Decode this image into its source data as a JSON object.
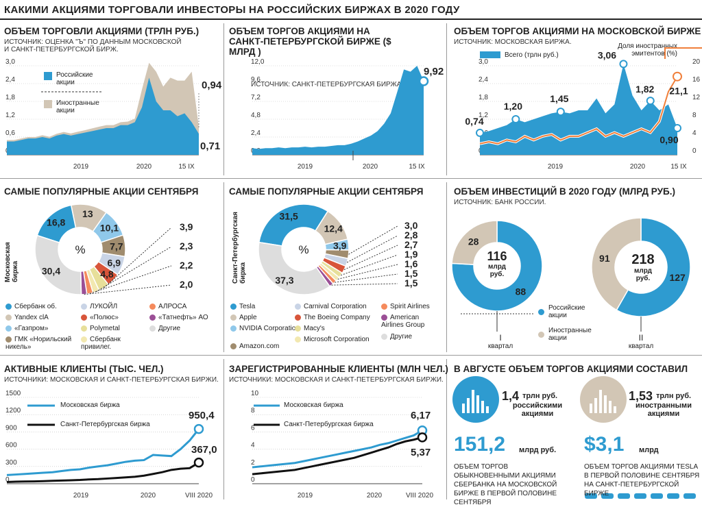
{
  "title": "КАКИМИ АКЦИЯМИ ТОРГОВАЛИ ИНВЕСТОРЫ НА РОССИЙСКИХ БИРЖАХ В 2020 ГОДУ",
  "colors": {
    "blue": "#2e9bd0",
    "beige": "#d2c6b5",
    "orange": "#f07f3a",
    "black": "#111111"
  },
  "p1": {
    "title": "ОБЪЕМ ТОРГОВЛИ АКЦИЯМИ (ТРЛН РУБ.)",
    "source": "ИСТОЧНИК: ОЦЕНКА \"Ъ\" ПО ДАННЫМ МОСКОВСКОЙ И САНКТ-ПЕТЕРБУРГСКОЙ БИРЖ.",
    "legend": [
      "Российские акции",
      "Иностранные акции"
    ],
    "end_total": "0,94",
    "end_rus": "0,71"
  },
  "p2": {
    "title": "ОБЪЕМ ТОРГОВ АКЦИЯМИ НА САНКТ-ПЕТЕРБУРГСКОЙ БИРЖЕ ($ МЛРД )",
    "source": "ИСТОЧНИК: САНКТ-ПЕТЕРБУРГСКАЯ БИРЖА.",
    "end": "9,92"
  },
  "p3": {
    "title": "ОБЪЕМ ТОРГОВ АКЦИЯМИ НА МОСКОВСКОЙ БИРЖЕ",
    "source": "ИСТОЧНИК: МОСКОВСКАЯ БИРЖА.",
    "legend_all": "Всего (трлн руб.)",
    "legend_share": "Доля иностранных эмитентов (%)",
    "labels": [
      "0,74",
      "1,20",
      "1,45",
      "3,06",
      "1,82",
      "0,90",
      "21,1"
    ]
  },
  "p4": {
    "title": "САМЫЕ ПОПУЛЯРНЫЕ АКЦИИ СЕНТЯБРЯ",
    "side": "Московская биржа",
    "center": "%",
    "legend": [
      "Сбербанк об.",
      "Yandex clA",
      "«Газпром»",
      "ГМК «Норильский никель»",
      "ЛУКОЙЛ",
      "«Полюс»",
      "Polymetal",
      "Сбербанк привилег.",
      "АЛРОСА",
      "«Татнефть» АО",
      "Другие"
    ]
  },
  "p5": {
    "title": "САМЫЕ ПОПУЛЯРНЫЕ АКЦИИ СЕНТЯБРЯ",
    "side": "Санкт-Петербургская биржа",
    "center": "%",
    "legend": [
      "Tesla",
      "Apple",
      "NVIDIA Corporation",
      "Amazon.com",
      "Carnival Corporation",
      "The Boeing Company",
      "Macy's",
      "Microsoft Corporation",
      "Spirit Airlines",
      "American Airlines Group",
      "Другие"
    ]
  },
  "p6": {
    "title": "ОБЪЕМ ИНВЕСТИЦИЙ В 2020 ГОДУ (МЛРД РУБ.)",
    "source": "ИСТОЧНИК: БАНК РОССИИ.",
    "q1_total": "116",
    "q2_total": "218",
    "unit": "млрд руб.",
    "q1": "I",
    "q2": "II",
    "quarter": "квартал",
    "legend": [
      "Российские акции",
      "Иностранные акции"
    ]
  },
  "p7": {
    "title": "АКТИВНЫЕ КЛИЕНТЫ (ТЫС. ЧЕЛ.)",
    "source": "ИСТОЧНИКИ: МОСКОВСКАЯ И САНКТ-ПЕТЕРБУРГСКАЯ БИРЖИ.",
    "legend": [
      "Московская биржа",
      "Санкт-Петербургская биржа"
    ],
    "end_mos": "950,4",
    "end_spb": "367,0"
  },
  "p8": {
    "title": "ЗАРЕГИСТРИРОВАННЫЕ КЛИЕНТЫ (МЛН ЧЕЛ.)",
    "source": "ИСТОЧНИКИ: МОСКОВСКАЯ И САНКТ-ПЕТЕРБУРГСКАЯ БИРЖИ.",
    "legend": [
      "Московская биржа",
      "Санкт-Петербургская биржа"
    ],
    "end_mos": "6,17",
    "end_spb": "5,37"
  },
  "p9": {
    "title": "В АВГУСТЕ ОБЪЕМ ТОРГОВ АКЦИЯМИ СОСТАВИЛ",
    "a_val": "1,4",
    "a_unit": "трлн руб.",
    "a_desc1": "российскими",
    "a_desc2": "акциями",
    "b_val": "1,53",
    "b_unit": "трлн руб.",
    "b_desc1": "иностранными",
    "b_desc2": "акциями",
    "c_val": "151,2",
    "c_unit": "млрд руб.",
    "c_desc": "ОБЪЕМ ТОРГОВ ОБЫКНОВЕННЫМИ АКЦИЯМИ СБЕРБАНКА НА МОСКОВСКОЙ БИРЖЕ В ПЕРВОЙ ПОЛОВИНЕ СЕНТЯБРЯ",
    "d_val": "$3,1",
    "d_unit": "млрд",
    "d_desc": "ОБЪЕМ ТОРГОВ АКЦИЯМИ TESLA В ПЕРВОЙ ПОЛОВИНЕ СЕНТЯБРЯ НА САНКТ-ПЕТЕРБУРГСКОЙ БИРЖЕ"
  },
  "chart_data": [
    {
      "type": "area",
      "yticks": [
        "0,0",
        "0,6",
        "1,2",
        "1,8",
        "2,4",
        "3,0"
      ],
      "xticks": [
        "2019",
        "2020",
        "15 IX"
      ],
      "ylim": [
        0,
        3.0
      ],
      "series": [
        {
          "name": "Российские акции",
          "values": [
            0.45,
            0.45,
            0.5,
            0.55,
            0.55,
            0.6,
            0.55,
            0.65,
            0.7,
            0.65,
            0.7,
            0.75,
            0.8,
            0.85,
            0.9,
            0.9,
            1.0,
            1.0,
            1.1,
            1.6,
            2.6,
            1.8,
            1.5,
            1.5,
            1.3,
            1.4,
            1.1,
            0.71
          ]
        },
        {
          "name": "Иностранные акции",
          "values": [
            0.05,
            0.05,
            0.05,
            0.05,
            0.05,
            0.06,
            0.06,
            0.06,
            0.07,
            0.07,
            0.08,
            0.08,
            0.09,
            0.1,
            0.1,
            0.1,
            0.1,
            0.12,
            0.12,
            0.6,
            0.5,
            1.0,
            0.8,
            1.1,
            1.2,
            1.1,
            1.7,
            0.23
          ]
        }
      ]
    },
    {
      "type": "area",
      "yticks": [
        "0,0",
        "2,4",
        "4,8",
        "7,2",
        "9,6",
        "12,0"
      ],
      "xticks": [
        "2019",
        "2020",
        "15 IX"
      ],
      "ylim": [
        0,
        12
      ],
      "values": [
        0.9,
        0.8,
        0.9,
        0.9,
        1.0,
        0.9,
        1.0,
        1.0,
        1.1,
        1.0,
        1.1,
        1.1,
        1.2,
        1.3,
        1.3,
        1.5,
        1.8,
        2.2,
        2.6,
        3.2,
        4.2,
        5.6,
        8.5,
        11.5,
        11.2,
        12.0,
        9.92
      ]
    },
    {
      "type": "area",
      "yticks": [
        "0,0",
        "0,6",
        "1,2",
        "1,8",
        "2,4",
        "3,0"
      ],
      "y2ticks": [
        "0",
        "4",
        "8",
        "12",
        "16",
        "20"
      ],
      "xticks": [
        "2019",
        "2020",
        "15 IX"
      ],
      "ylim": [
        0,
        3.0
      ],
      "y2lim": [
        0,
        24
      ],
      "series": [
        {
          "name": "Всего (трлн руб.)",
          "values": [
            0.74,
            0.8,
            0.9,
            1.0,
            1.2,
            1.1,
            1.2,
            1.3,
            1.4,
            1.45,
            1.4,
            1.5,
            1.5,
            1.9,
            1.4,
            1.7,
            3.06,
            2.0,
            1.5,
            1.82,
            1.5,
            1.7,
            0.9
          ]
        },
        {
          "name": "Доля иностранных эмитентов (%)",
          "values": [
            3,
            3.5,
            3,
            4,
            3.5,
            5,
            4,
            5,
            5.5,
            4,
            5,
            5,
            6,
            7,
            5,
            6,
            5,
            6,
            7,
            6,
            9,
            17,
            21.1
          ]
        }
      ]
    },
    {
      "type": "pie",
      "values": [
        16.8,
        13,
        10.1,
        7.7,
        6.9,
        4.8,
        3.9,
        2.3,
        2.2,
        2.0,
        30.4
      ],
      "labels": [
        "16,8",
        "13",
        "10,1",
        "7,7",
        "6,9",
        "4,8",
        "3,9",
        "2,3",
        "2,2",
        "2,0",
        "30,4"
      ]
    },
    {
      "type": "pie",
      "values": [
        31.5,
        12.4,
        3.9,
        3.0,
        2.8,
        2.7,
        1.9,
        1.6,
        1.5,
        1.5,
        37.3
      ],
      "labels": [
        "31,5",
        "12,4",
        "3,9",
        "3,0",
        "2,8",
        "2,7",
        "1,9",
        "1,6",
        "1,5",
        "1,5",
        "37,3"
      ]
    },
    {
      "type": "pie",
      "categories": [
        "Российские акции",
        "Иностранные акции"
      ],
      "series": [
        {
          "name": "I",
          "values": [
            88,
            28
          ]
        },
        {
          "name": "II",
          "values": [
            127,
            91
          ]
        }
      ]
    },
    {
      "type": "line",
      "yticks": [
        "0",
        "300",
        "600",
        "900",
        "1200",
        "1500"
      ],
      "xticks": [
        "2019",
        "2020",
        "VIII 2020"
      ],
      "ylim": [
        0,
        1500
      ],
      "series": [
        {
          "name": "Московская биржа",
          "values": [
            150,
            160,
            170,
            180,
            190,
            200,
            220,
            240,
            250,
            280,
            300,
            320,
            350,
            380,
            400,
            410,
            500,
            490,
            480,
            600,
            750,
            950.4
          ]
        },
        {
          "name": "Санкт-Петербургская биржа",
          "values": [
            30,
            35,
            38,
            40,
            45,
            50,
            55,
            60,
            65,
            75,
            80,
            90,
            100,
            110,
            120,
            140,
            170,
            200,
            240,
            260,
            270,
            367.0
          ]
        }
      ]
    },
    {
      "type": "line",
      "yticks": [
        "0",
        "2",
        "4",
        "6",
        "8",
        "10"
      ],
      "xticks": [
        "2019",
        "2020",
        "VIII 2020"
      ],
      "ylim": [
        0,
        10
      ],
      "series": [
        {
          "name": "Московская биржа",
          "values": [
            1.9,
            2.0,
            2.1,
            2.2,
            2.3,
            2.4,
            2.6,
            2.8,
            3.0,
            3.2,
            3.4,
            3.6,
            3.8,
            4.0,
            4.2,
            4.5,
            4.7,
            5.0,
            5.3,
            5.6,
            6.17
          ]
        },
        {
          "name": "Санкт-Петербургская биржа",
          "values": [
            1.1,
            1.2,
            1.3,
            1.4,
            1.5,
            1.6,
            1.8,
            2.0,
            2.2,
            2.4,
            2.6,
            2.8,
            3.0,
            3.3,
            3.6,
            3.9,
            4.2,
            4.6,
            4.9,
            5.1,
            5.37
          ]
        }
      ]
    }
  ]
}
